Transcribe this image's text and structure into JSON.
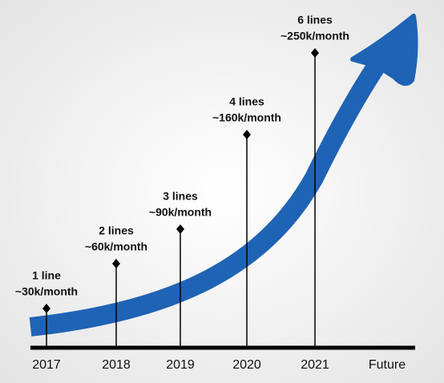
{
  "milestones": [
    {
      "year": "2017",
      "lines": "1 line",
      "rate": "~30k/month"
    },
    {
      "year": "2018",
      "lines": "2 lines",
      "rate": "~60k/month"
    },
    {
      "year": "2019",
      "lines": "3 lines",
      "rate": "~90k/month"
    },
    {
      "year": "2020",
      "lines": "4 lines",
      "rate": "~160k/month"
    },
    {
      "year": "2021",
      "lines": "6 lines",
      "rate": "~250k/month"
    }
  ],
  "future": "Future"
}
